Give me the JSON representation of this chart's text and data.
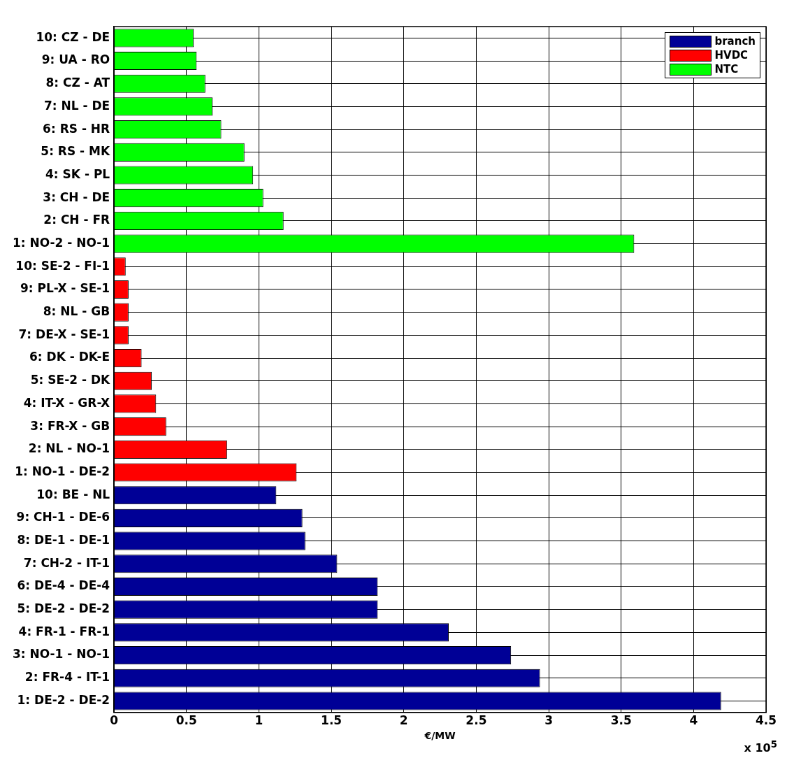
{
  "chart_data": {
    "type": "bar",
    "orientation": "horizontal",
    "xlabel": "€/MW",
    "annotations": [
      "x 10$^{5}$"
    ],
    "categories": [
      "10: CZ - DE",
      "9: UA - RO",
      "8: CZ - AT",
      "7: NL - DE",
      "6: RS - HR",
      "5: RS - MK",
      "4: SK - PL",
      "3: CH - DE",
      "2: CH - FR",
      "1: NO-2 - NO-1",
      "10: SE-2 - FI-1",
      "9: PL-X - SE-1",
      "8: NL - GB",
      "7: DE-X - SE-1",
      "6: DK - DK-E",
      "5: SE-2 - DK",
      "4: IT-X - GR-X",
      "3: FR-X - GB",
      "2: NL - NO-1",
      "1: NO-1 - DE-2",
      "10: BE - NL",
      "9: CH-1 - DE-6",
      "8: DE-1 - DE-1",
      "7: CH-2 - IT-1",
      "6: DE-4 - DE-4",
      "5: DE-2 - DE-2",
      "4: FR-1 - FR-1",
      "3: NO-1 - NO-1",
      "2: FR-4 - IT-1",
      "1: DE-2 - DE-2"
    ],
    "series": [
      {
        "name": "branch",
        "color": "#000096",
        "values": [
          null,
          null,
          null,
          null,
          null,
          null,
          null,
          null,
          null,
          null,
          null,
          null,
          null,
          null,
          null,
          null,
          null,
          null,
          null,
          null,
          1.12,
          1.3,
          1.32,
          1.54,
          1.82,
          1.82,
          2.31,
          2.74,
          2.94,
          4.19
        ]
      },
      {
        "name": "HVDC",
        "color": "#ff0000",
        "values": [
          null,
          null,
          null,
          null,
          null,
          null,
          null,
          null,
          null,
          null,
          0.08,
          0.1,
          0.1,
          0.1,
          0.19,
          0.26,
          0.29,
          0.36,
          0.78,
          1.26,
          null,
          null,
          null,
          null,
          null,
          null,
          null,
          null,
          null,
          null
        ]
      },
      {
        "name": "NTC",
        "color": "#00ff00",
        "values": [
          0.55,
          0.57,
          0.63,
          0.68,
          0.74,
          0.9,
          0.96,
          1.03,
          1.17,
          3.59,
          null,
          null,
          null,
          null,
          null,
          null,
          null,
          null,
          null,
          null,
          null,
          null,
          null,
          null,
          null,
          null,
          null,
          null,
          null,
          null
        ]
      }
    ],
    "xlim": [
      0,
      4.5
    ],
    "xticks": [
      0,
      0.5,
      1,
      1.5,
      2,
      2.5,
      3,
      3.5,
      4,
      4.5
    ],
    "grid": true,
    "legend": "top right"
  }
}
